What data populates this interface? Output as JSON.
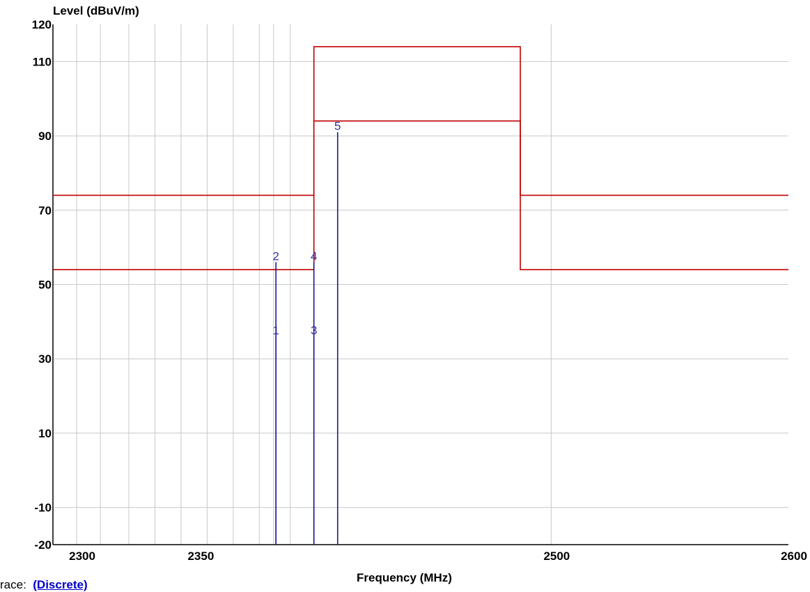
{
  "chart_data": {
    "type": "line",
    "ylabel": "Level (dBuV/m)",
    "xlabel": "Frequency (MHz)",
    "xlim": [
      2290,
      2600
    ],
    "ylim": [
      -20,
      120
    ],
    "x_ticks": [
      2300,
      2350,
      2500,
      2600
    ],
    "y_ticks": [
      120,
      110,
      90,
      70,
      50,
      30,
      10,
      -10,
      -20
    ],
    "x_grid": [
      2300,
      2310,
      2322,
      2333,
      2344,
      2355,
      2366,
      2377,
      2383,
      2390,
      2500
    ],
    "y_grid": [
      110,
      90,
      70,
      50,
      30,
      10,
      -10
    ],
    "grid": true,
    "limit_lines": [
      {
        "color": "#c00000",
        "points": [
          [
            2290,
            74
          ],
          [
            2400,
            74
          ],
          [
            2400,
            114
          ],
          [
            2487,
            114
          ],
          [
            2487,
            74
          ],
          [
            2600,
            74
          ]
        ]
      },
      {
        "color": "#c00000",
        "points": [
          [
            2290,
            54
          ],
          [
            2400,
            54
          ],
          [
            2400,
            94
          ],
          [
            2487,
            94
          ],
          [
            2487,
            54
          ],
          [
            2600,
            54
          ]
        ]
      }
    ],
    "markers": [
      {
        "label": "1",
        "x": 2384,
        "y": 36
      },
      {
        "label": "2",
        "x": 2384,
        "y": 56
      },
      {
        "label": "3",
        "x": 2400,
        "y": 36
      },
      {
        "label": "4",
        "x": 2400,
        "y": 56
      },
      {
        "label": "5",
        "x": 2410,
        "y": 91
      }
    ],
    "marker_color": "#1a1a8c",
    "marker_label_color": "#3333aa"
  },
  "footer": {
    "trace_prefix": "race:",
    "trace_value": "(Discrete)"
  }
}
